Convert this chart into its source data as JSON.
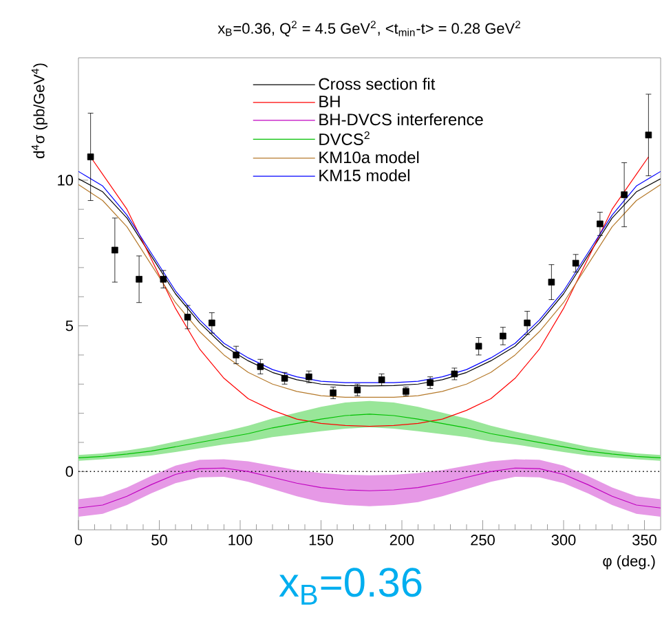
{
  "chart_data": {
    "type": "line",
    "title": "x$_{B}$=0.36,  Q$^{2}$ = 4.5 GeV$^{2}$,  <t$_{min}$-t> = 0.28 GeV$^{2}$",
    "xlabel": "φ (deg.)",
    "ylabel": "d$^{4}$σ (pb/GeV$^{4}$)",
    "annotations": [
      "x$_{B}$=0.36"
    ],
    "xlim": [
      0,
      360
    ],
    "ylim": [
      -2,
      14.2
    ],
    "xticks": [
      0,
      50,
      100,
      150,
      200,
      250,
      300,
      350
    ],
    "yticks": [
      0,
      5,
      10
    ],
    "grid": false,
    "legend": "top",
    "ref_lines": [
      {
        "axis": "y",
        "value": 0,
        "color": "#000000",
        "line_style": "dotted"
      }
    ],
    "series": [
      {
        "type": "scatter",
        "color": "#000000",
        "marker": "square",
        "x": [
          7.5,
          22.5,
          37.5,
          52.5,
          67.5,
          82.5,
          97.5,
          112.5,
          127.5,
          142.5,
          157.5,
          172.5,
          187.5,
          202.5,
          217.5,
          232.5,
          247.5,
          262.5,
          277.5,
          292.5,
          307.5,
          322.5,
          337.5,
          352.5
        ],
        "values": [
          10.8,
          7.6,
          6.6,
          6.6,
          5.3,
          5.1,
          4.0,
          3.6,
          3.2,
          3.25,
          2.7,
          2.8,
          3.15,
          2.75,
          3.05,
          3.35,
          4.3,
          4.65,
          5.1,
          6.5,
          7.15,
          8.5,
          9.5,
          11.55
        ],
        "errors": [
          1.5,
          1.1,
          0.8,
          0.3,
          0.4,
          0.35,
          0.3,
          0.25,
          0.2,
          0.2,
          0.2,
          0.2,
          0.2,
          0.15,
          0.2,
          0.2,
          0.3,
          0.3,
          0.4,
          0.6,
          0.3,
          0.4,
          1.1,
          1.4
        ]
      },
      {
        "name": "Cross section fit",
        "color": "#000000",
        "x": [
          0,
          15,
          30,
          45,
          60,
          75,
          90,
          105,
          120,
          135,
          150,
          165,
          180,
          195,
          210,
          225,
          240,
          255,
          270,
          285,
          300,
          315,
          330,
          345,
          360
        ],
        "values": [
          10.05,
          9.6,
          8.7,
          7.4,
          6.1,
          5.1,
          4.3,
          3.8,
          3.4,
          3.15,
          3.0,
          2.95,
          2.94,
          2.95,
          3.0,
          3.15,
          3.4,
          3.8,
          4.3,
          5.1,
          6.1,
          7.4,
          8.7,
          9.6,
          10.05
        ]
      },
      {
        "name": "BH",
        "color": "#ff0000",
        "x": [
          7.5,
          15,
          30,
          45,
          60,
          75,
          90,
          105,
          120,
          135,
          150,
          165,
          180,
          195,
          210,
          225,
          240,
          255,
          270,
          285,
          300,
          315,
          330,
          345,
          352.5
        ],
        "values": [
          10.8,
          10.2,
          9.0,
          7.3,
          5.6,
          4.2,
          3.2,
          2.5,
          2.1,
          1.8,
          1.65,
          1.58,
          1.55,
          1.58,
          1.65,
          1.8,
          2.1,
          2.5,
          3.2,
          4.2,
          5.6,
          7.3,
          9.0,
          10.2,
          10.8
        ]
      },
      {
        "name": "BH-DVCS interference",
        "color": "#c000c0",
        "x": [
          0,
          15,
          30,
          45,
          60,
          75,
          90,
          105,
          120,
          135,
          150,
          165,
          180,
          195,
          210,
          225,
          240,
          255,
          270,
          285,
          300,
          315,
          330,
          345,
          360
        ],
        "values": [
          -1.25,
          -1.15,
          -0.85,
          -0.45,
          -0.1,
          0.1,
          0.12,
          0.0,
          -0.2,
          -0.4,
          -0.55,
          -0.63,
          -0.66,
          -0.63,
          -0.55,
          -0.4,
          -0.2,
          0.0,
          0.12,
          0.1,
          -0.1,
          -0.45,
          -0.85,
          -1.15,
          -1.25
        ],
        "lower": [
          -1.55,
          -1.45,
          -1.15,
          -0.75,
          -0.4,
          -0.2,
          -0.18,
          -0.35,
          -0.6,
          -0.85,
          -1.05,
          -1.15,
          -1.19,
          -1.15,
          -1.05,
          -0.85,
          -0.6,
          -0.35,
          -0.18,
          -0.2,
          -0.4,
          -0.75,
          -1.15,
          -1.45,
          -1.55
        ],
        "upper": [
          -0.95,
          -0.85,
          -0.55,
          -0.15,
          0.2,
          0.4,
          0.42,
          0.35,
          0.2,
          0.05,
          -0.05,
          -0.11,
          -0.13,
          -0.11,
          -0.05,
          0.05,
          0.2,
          0.35,
          0.42,
          0.4,
          0.2,
          -0.15,
          -0.55,
          -0.85,
          -0.95
        ]
      },
      {
        "name": "DVCS$^{2}$",
        "color": "#00c000",
        "x": [
          0,
          15,
          30,
          45,
          60,
          75,
          90,
          105,
          120,
          135,
          150,
          165,
          180,
          195,
          210,
          225,
          240,
          255,
          270,
          285,
          300,
          315,
          330,
          345,
          360
        ],
        "values": [
          0.47,
          0.52,
          0.6,
          0.7,
          0.85,
          1.0,
          1.15,
          1.3,
          1.5,
          1.65,
          1.8,
          1.92,
          1.97,
          1.92,
          1.8,
          1.65,
          1.5,
          1.3,
          1.15,
          1.0,
          0.85,
          0.7,
          0.6,
          0.52,
          0.47
        ],
        "lower": [
          0.37,
          0.42,
          0.48,
          0.55,
          0.67,
          0.8,
          0.93,
          1.03,
          1.18,
          1.28,
          1.38,
          1.47,
          1.52,
          1.47,
          1.38,
          1.28,
          1.18,
          1.03,
          0.93,
          0.8,
          0.67,
          0.55,
          0.48,
          0.42,
          0.37
        ],
        "upper": [
          0.57,
          0.62,
          0.72,
          0.85,
          1.03,
          1.2,
          1.37,
          1.57,
          1.82,
          2.02,
          2.22,
          2.37,
          2.42,
          2.37,
          2.22,
          2.02,
          1.82,
          1.57,
          1.37,
          1.2,
          1.03,
          0.85,
          0.72,
          0.62,
          0.57
        ]
      },
      {
        "name": "KM10a model",
        "color": "#b5792a",
        "x": [
          0,
          15,
          30,
          45,
          60,
          75,
          90,
          105,
          120,
          135,
          150,
          165,
          180,
          195,
          210,
          225,
          240,
          255,
          270,
          285,
          300,
          315,
          330,
          345,
          360
        ],
        "values": [
          9.85,
          9.3,
          8.4,
          7.1,
          5.8,
          4.8,
          4.0,
          3.4,
          3.0,
          2.75,
          2.6,
          2.55,
          2.55,
          2.55,
          2.6,
          2.75,
          3.0,
          3.4,
          4.0,
          4.8,
          5.8,
          7.1,
          8.4,
          9.3,
          9.85
        ]
      },
      {
        "name": "KM15 model",
        "color": "#0000ff",
        "x": [
          0,
          15,
          30,
          45,
          60,
          75,
          90,
          105,
          120,
          135,
          150,
          165,
          180,
          195,
          210,
          225,
          240,
          255,
          270,
          285,
          300,
          315,
          330,
          345,
          360
        ],
        "values": [
          10.3,
          9.8,
          8.8,
          7.5,
          6.2,
          5.2,
          4.4,
          3.9,
          3.5,
          3.25,
          3.1,
          3.05,
          3.05,
          3.05,
          3.1,
          3.25,
          3.5,
          3.9,
          4.4,
          5.2,
          6.2,
          7.5,
          8.8,
          9.8,
          10.3
        ]
      }
    ]
  }
}
